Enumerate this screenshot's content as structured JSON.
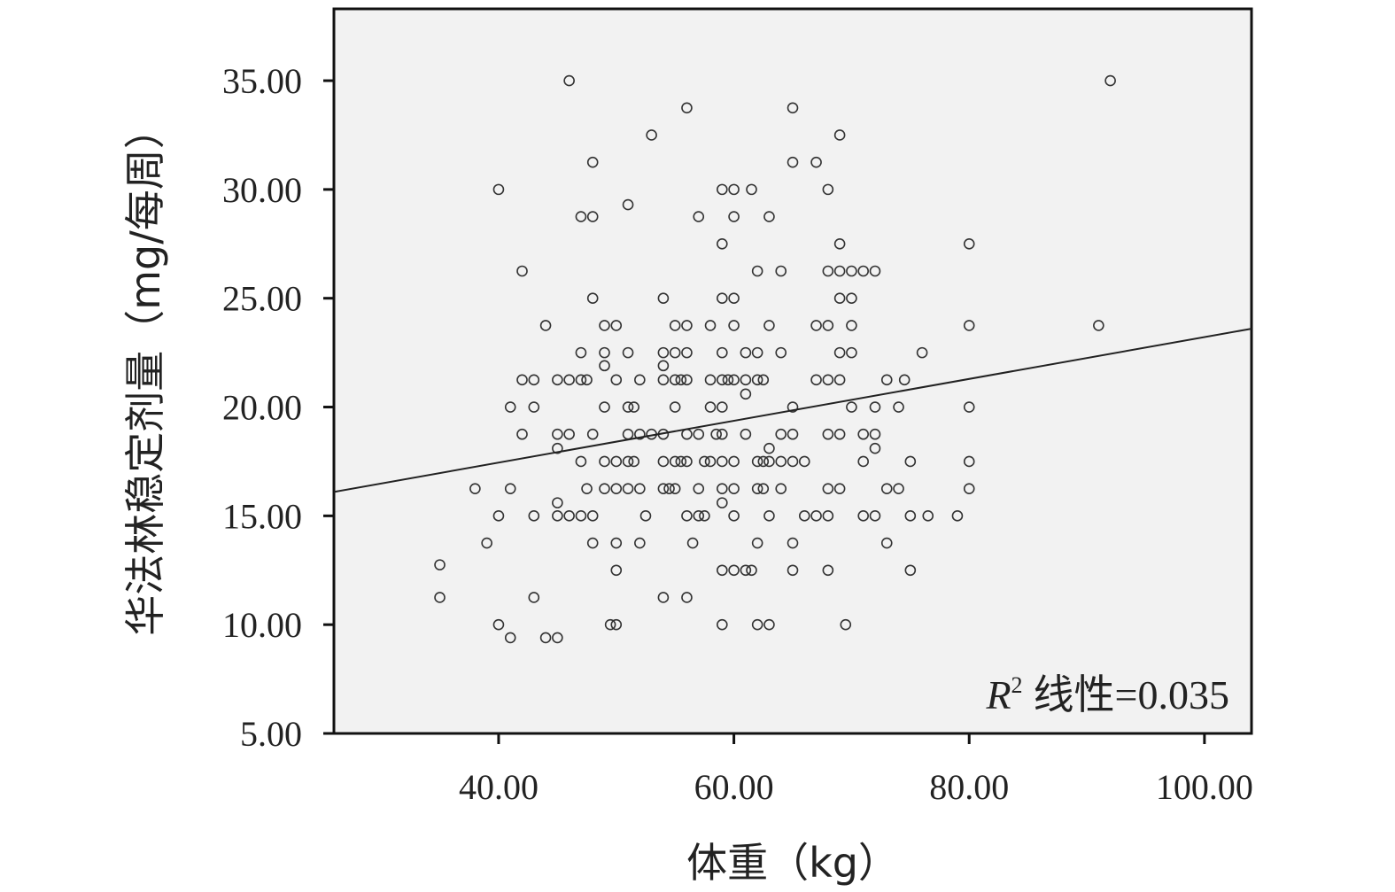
{
  "chart_data": {
    "type": "scatter",
    "xlabel": "体重（kg）",
    "ylabel": "华法林稳定剂量（mg/每周）",
    "xlim": [
      26,
      104
    ],
    "ylim": [
      5,
      38.3
    ],
    "x_ticks": [
      "40.00",
      "60.00",
      "80.00",
      "100.00"
    ],
    "y_ticks": [
      "5.00",
      "10.00",
      "15.00",
      "20.00",
      "25.00",
      "30.00",
      "35.00"
    ],
    "grid": false,
    "annotation": {
      "r_symbol": "R",
      "superscript": "2",
      "text": "线性=0.035"
    },
    "fit_line": {
      "x": [
        26,
        104
      ],
      "y": [
        16.1,
        23.6
      ]
    },
    "points": [
      [
        46,
        35
      ],
      [
        92,
        35
      ],
      [
        56,
        33.75
      ],
      [
        65,
        33.75
      ],
      [
        53,
        32.5
      ],
      [
        69,
        32.5
      ],
      [
        48,
        31.25
      ],
      [
        65,
        31.25
      ],
      [
        67,
        31.25
      ],
      [
        40,
        30
      ],
      [
        59,
        30
      ],
      [
        60,
        30
      ],
      [
        61.5,
        30
      ],
      [
        68,
        30
      ],
      [
        51,
        29.3
      ],
      [
        47,
        28.75
      ],
      [
        48,
        28.75
      ],
      [
        57,
        28.75
      ],
      [
        60,
        28.75
      ],
      [
        63,
        28.75
      ],
      [
        59,
        27.5
      ],
      [
        69,
        27.5
      ],
      [
        80,
        27.5
      ],
      [
        42,
        26.25
      ],
      [
        62,
        26.25
      ],
      [
        64,
        26.25
      ],
      [
        68,
        26.25
      ],
      [
        69,
        26.25
      ],
      [
        70,
        26.25
      ],
      [
        71,
        26.25
      ],
      [
        72,
        26.25
      ],
      [
        48,
        25
      ],
      [
        54,
        25
      ],
      [
        59,
        25
      ],
      [
        60,
        25
      ],
      [
        69,
        25
      ],
      [
        70,
        25
      ],
      [
        44,
        23.75
      ],
      [
        49,
        23.75
      ],
      [
        50,
        23.75
      ],
      [
        55,
        23.75
      ],
      [
        56,
        23.75
      ],
      [
        58,
        23.75
      ],
      [
        60,
        23.75
      ],
      [
        63,
        23.75
      ],
      [
        67,
        23.75
      ],
      [
        68,
        23.75
      ],
      [
        70,
        23.75
      ],
      [
        80,
        23.75
      ],
      [
        91,
        23.75
      ],
      [
        47,
        22.5
      ],
      [
        49,
        22.5
      ],
      [
        51,
        22.5
      ],
      [
        54,
        22.5
      ],
      [
        55,
        22.5
      ],
      [
        56,
        22.5
      ],
      [
        59,
        22.5
      ],
      [
        61,
        22.5
      ],
      [
        62,
        22.5
      ],
      [
        64,
        22.5
      ],
      [
        69,
        22.5
      ],
      [
        70,
        22.5
      ],
      [
        76,
        22.5
      ],
      [
        49,
        21.9
      ],
      [
        54,
        21.9
      ],
      [
        42,
        21.25
      ],
      [
        43,
        21.25
      ],
      [
        45,
        21.25
      ],
      [
        46,
        21.25
      ],
      [
        47,
        21.25
      ],
      [
        47.5,
        21.25
      ],
      [
        50,
        21.25
      ],
      [
        52,
        21.25
      ],
      [
        54,
        21.25
      ],
      [
        55,
        21.25
      ],
      [
        55.5,
        21.25
      ],
      [
        56,
        21.25
      ],
      [
        58,
        21.25
      ],
      [
        59,
        21.25
      ],
      [
        59.5,
        21.25
      ],
      [
        60,
        21.25
      ],
      [
        61,
        21.25
      ],
      [
        62,
        21.25
      ],
      [
        62.5,
        21.25
      ],
      [
        67,
        21.25
      ],
      [
        68,
        21.25
      ],
      [
        69,
        21.25
      ],
      [
        73,
        21.25
      ],
      [
        74.5,
        21.25
      ],
      [
        61,
        20.6
      ],
      [
        41,
        20
      ],
      [
        43,
        20
      ],
      [
        49,
        20
      ],
      [
        51,
        20
      ],
      [
        51.5,
        20
      ],
      [
        55,
        20
      ],
      [
        58,
        20
      ],
      [
        59,
        20
      ],
      [
        65,
        20
      ],
      [
        70,
        20
      ],
      [
        72,
        20
      ],
      [
        74,
        20
      ],
      [
        80,
        20
      ],
      [
        42,
        18.75
      ],
      [
        45,
        18.75
      ],
      [
        46,
        18.75
      ],
      [
        48,
        18.75
      ],
      [
        51,
        18.75
      ],
      [
        52,
        18.75
      ],
      [
        53,
        18.75
      ],
      [
        54,
        18.75
      ],
      [
        56,
        18.75
      ],
      [
        57,
        18.75
      ],
      [
        58.5,
        18.75
      ],
      [
        59,
        18.75
      ],
      [
        61,
        18.75
      ],
      [
        64,
        18.75
      ],
      [
        65,
        18.75
      ],
      [
        68,
        18.75
      ],
      [
        69,
        18.75
      ],
      [
        71,
        18.75
      ],
      [
        72,
        18.75
      ],
      [
        45,
        18.1
      ],
      [
        63,
        18.1
      ],
      [
        72,
        18.1
      ],
      [
        47,
        17.5
      ],
      [
        49,
        17.5
      ],
      [
        50,
        17.5
      ],
      [
        51,
        17.5
      ],
      [
        51.5,
        17.5
      ],
      [
        54,
        17.5
      ],
      [
        55,
        17.5
      ],
      [
        55.5,
        17.5
      ],
      [
        56,
        17.5
      ],
      [
        57.5,
        17.5
      ],
      [
        58,
        17.5
      ],
      [
        59,
        17.5
      ],
      [
        60,
        17.5
      ],
      [
        62,
        17.5
      ],
      [
        62.5,
        17.5
      ],
      [
        63,
        17.5
      ],
      [
        64,
        17.5
      ],
      [
        65,
        17.5
      ],
      [
        66,
        17.5
      ],
      [
        71,
        17.5
      ],
      [
        75,
        17.5
      ],
      [
        80,
        17.5
      ],
      [
        38,
        16.25
      ],
      [
        41,
        16.25
      ],
      [
        47.5,
        16.25
      ],
      [
        49,
        16.25
      ],
      [
        50,
        16.25
      ],
      [
        51,
        16.25
      ],
      [
        52,
        16.25
      ],
      [
        54,
        16.25
      ],
      [
        54.5,
        16.25
      ],
      [
        55,
        16.25
      ],
      [
        57,
        16.25
      ],
      [
        59,
        16.25
      ],
      [
        60,
        16.25
      ],
      [
        62,
        16.25
      ],
      [
        62.5,
        16.25
      ],
      [
        64,
        16.25
      ],
      [
        68,
        16.25
      ],
      [
        69,
        16.25
      ],
      [
        73,
        16.25
      ],
      [
        74,
        16.25
      ],
      [
        80,
        16.25
      ],
      [
        45,
        15.6
      ],
      [
        59,
        15.6
      ],
      [
        40,
        15
      ],
      [
        43,
        15
      ],
      [
        45,
        15
      ],
      [
        46,
        15
      ],
      [
        47,
        15
      ],
      [
        48,
        15
      ],
      [
        52.5,
        15
      ],
      [
        56,
        15
      ],
      [
        57,
        15
      ],
      [
        57.5,
        15
      ],
      [
        60,
        15
      ],
      [
        63,
        15
      ],
      [
        66,
        15
      ],
      [
        67,
        15
      ],
      [
        68,
        15
      ],
      [
        71,
        15
      ],
      [
        72,
        15
      ],
      [
        75,
        15
      ],
      [
        76.5,
        15
      ],
      [
        79,
        15
      ],
      [
        39,
        13.75
      ],
      [
        48,
        13.75
      ],
      [
        50,
        13.75
      ],
      [
        52,
        13.75
      ],
      [
        56.5,
        13.75
      ],
      [
        62,
        13.75
      ],
      [
        65,
        13.75
      ],
      [
        73,
        13.75
      ],
      [
        35,
        12.75
      ],
      [
        50,
        12.5
      ],
      [
        59,
        12.5
      ],
      [
        60,
        12.5
      ],
      [
        61,
        12.5
      ],
      [
        61.5,
        12.5
      ],
      [
        65,
        12.5
      ],
      [
        68,
        12.5
      ],
      [
        75,
        12.5
      ],
      [
        35,
        11.25
      ],
      [
        43,
        11.25
      ],
      [
        54,
        11.25
      ],
      [
        56,
        11.25
      ],
      [
        40,
        10
      ],
      [
        49.5,
        10
      ],
      [
        50,
        10
      ],
      [
        59,
        10
      ],
      [
        62,
        10
      ],
      [
        63,
        10
      ],
      [
        69.5,
        10
      ],
      [
        41,
        9.4
      ],
      [
        44,
        9.4
      ],
      [
        45,
        9.4
      ]
    ]
  }
}
